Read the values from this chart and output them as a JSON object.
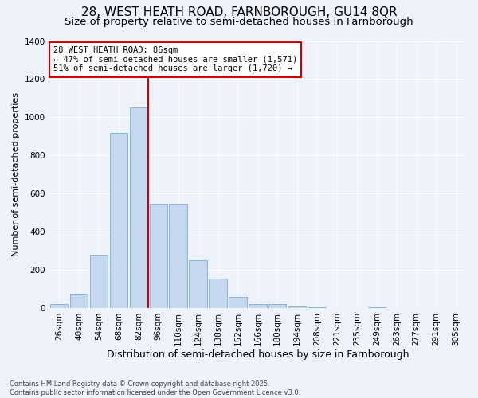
{
  "title1": "28, WEST HEATH ROAD, FARNBOROUGH, GU14 8QR",
  "title2": "Size of property relative to semi-detached houses in Farnborough",
  "xlabel": "Distribution of semi-detached houses by size in Farnborough",
  "ylabel": "Number of semi-detached properties",
  "categories": [
    "26sqm",
    "40sqm",
    "54sqm",
    "68sqm",
    "82sqm",
    "96sqm",
    "110sqm",
    "124sqm",
    "138sqm",
    "152sqm",
    "166sqm",
    "180sqm",
    "194sqm",
    "208sqm",
    "221sqm",
    "235sqm",
    "249sqm",
    "263sqm",
    "277sqm",
    "291sqm",
    "305sqm"
  ],
  "values": [
    20,
    75,
    280,
    920,
    1050,
    545,
    545,
    250,
    155,
    60,
    20,
    20,
    10,
    5,
    0,
    0,
    5,
    0,
    0,
    0,
    0
  ],
  "bar_color": "#c5d8f0",
  "bar_edge_color": "#7aadd4",
  "highlight_line_color": "#cc0000",
  "annotation_line1": "28 WEST HEATH ROAD: 86sqm",
  "annotation_line2": "← 47% of semi-detached houses are smaller (1,571)",
  "annotation_line3": "51% of semi-detached houses are larger (1,720) →",
  "annotation_box_color": "#ffffff",
  "annotation_box_edge": "#cc0000",
  "ylim": [
    0,
    1400
  ],
  "yticks": [
    0,
    200,
    400,
    600,
    800,
    1000,
    1200,
    1400
  ],
  "footnote": "Contains HM Land Registry data © Crown copyright and database right 2025.\nContains public sector information licensed under the Open Government Licence v3.0.",
  "bg_color": "#eef2fb",
  "grid_color": "#ffffff",
  "title_fontsize": 11,
  "subtitle_fontsize": 9.5,
  "xlabel_fontsize": 9,
  "ylabel_fontsize": 8,
  "tick_fontsize": 7.5,
  "annotation_fontsize": 7.5,
  "footnote_fontsize": 6
}
